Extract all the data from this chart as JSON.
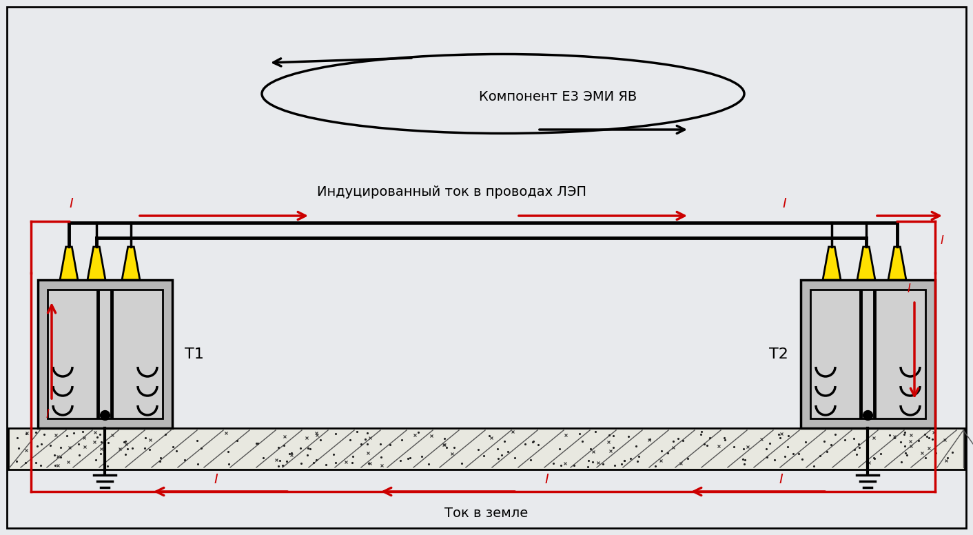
{
  "bg_color": "#e8eaed",
  "black": "#000000",
  "red": "#cc0000",
  "gray_box": "#b8b8b8",
  "gray_inner": "#d0d0d0",
  "yellow": "#ffe000",
  "white_bg": "#f0f0f4",
  "title_emp": "Компонент Е3 ЭМИ ЯВ",
  "title_lep": "Индуцированный ток в проводах ЛЭП",
  "title_earth": "Ток в земле",
  "label_t1": "Т1",
  "label_t2": "Т2"
}
